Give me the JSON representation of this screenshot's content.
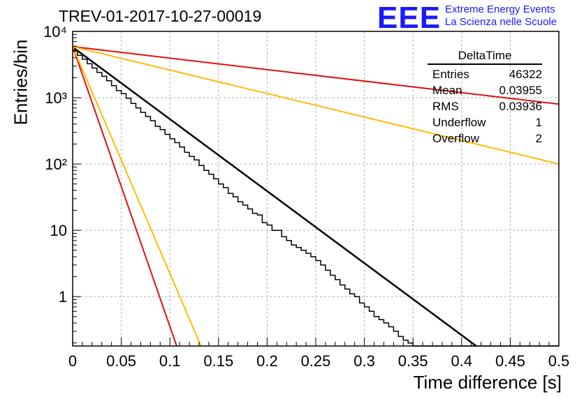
{
  "header": {
    "title": "TREV-01-2017-10-27-00019",
    "logo_text": "EEE",
    "logo_line1": "Extreme Energy Events",
    "logo_line2": "La Scienza nelle Scuole"
  },
  "stats_box": {
    "name": "DeltaTime",
    "rows": [
      {
        "label": "Entries",
        "value": "46322"
      },
      {
        "label": "Mean",
        "value": "0.03955"
      },
      {
        "label": "RMS",
        "value": "0.03936"
      },
      {
        "label": "Underflow",
        "value": "1"
      },
      {
        "label": "Overflow",
        "value": "2"
      }
    ]
  },
  "colors": {
    "histogram": "#000000",
    "fit": "#000000",
    "red": "#e01010",
    "orange": "#ffbb00",
    "grid": "#b0b0b0",
    "logo": "#1a1aff"
  },
  "chart_data": {
    "type": "line",
    "title": "TREV-01-2017-10-27-00019",
    "xlabel": "Time difference [s]",
    "ylabel": "Entries/bin",
    "xlim": [
      0,
      0.5
    ],
    "ylim": [
      0.18,
      10000
    ],
    "yscale": "log",
    "grid": true,
    "x_ticks": [
      0,
      0.05,
      0.1,
      0.15,
      0.2,
      0.25,
      0.3,
      0.35,
      0.4,
      0.45,
      0.5
    ],
    "x_tick_labels": [
      "0",
      "0.05",
      "0.1",
      "0.15",
      "0.2",
      "0.25",
      "0.3",
      "0.35",
      "0.4",
      "0.45",
      "0.5"
    ],
    "y_ticks": [
      1,
      10,
      100,
      1000,
      10000
    ],
    "y_tick_labels": [
      "1",
      "10",
      "10²",
      "10³",
      "10⁴"
    ],
    "histogram": {
      "name": "DeltaTime",
      "bin_width": 0.005,
      "x_start": 0,
      "counts": [
        5200,
        4350,
        3800,
        3250,
        2800,
        2400,
        2100,
        1800,
        1520,
        1280,
        1150,
        980,
        820,
        700,
        600,
        520,
        450,
        370,
        330,
        280,
        240,
        210,
        180,
        150,
        130,
        115,
        95,
        80,
        70,
        60,
        50,
        44,
        36,
        32,
        27,
        24,
        21,
        18,
        17,
        13,
        12,
        10,
        10,
        8,
        7,
        6,
        5.5,
        5,
        4.5,
        4,
        3.5,
        3,
        2.5,
        2.1,
        1.8,
        1.5,
        1.3,
        1.1,
        1,
        0.8,
        0.7,
        0.6,
        0.5,
        0.45,
        0.4,
        0.35,
        0.3,
        0.25,
        0.22,
        0.2,
        0.18,
        0.16,
        0.14,
        0.12,
        0.11,
        0.1,
        0.09,
        0.08,
        0.07,
        0.06,
        0.05,
        0.04,
        0.03,
        0.02,
        0.02,
        0.02,
        0.02,
        0.02,
        0.02,
        0.02,
        0.02,
        0.02,
        0.02,
        0.02,
        0.02,
        0.02,
        0.02,
        0.02,
        0.02,
        0.02
      ]
    },
    "series": [
      {
        "color": "#000000",
        "x": [
          0,
          0.415
        ],
        "y": [
          5800,
          0.18
        ]
      },
      {
        "color": "#e01010",
        "x": [
          0,
          0.5
        ],
        "y": [
          5900,
          800
        ]
      },
      {
        "color": "#ffbb00",
        "x": [
          0,
          0.5
        ],
        "y": [
          5900,
          100
        ]
      },
      {
        "color": "#e01010",
        "x": [
          0,
          0.107
        ],
        "y": [
          5900,
          0.18
        ]
      },
      {
        "color": "#ffbb00",
        "x": [
          0,
          0.132
        ],
        "y": [
          5900,
          0.18
        ]
      }
    ]
  }
}
